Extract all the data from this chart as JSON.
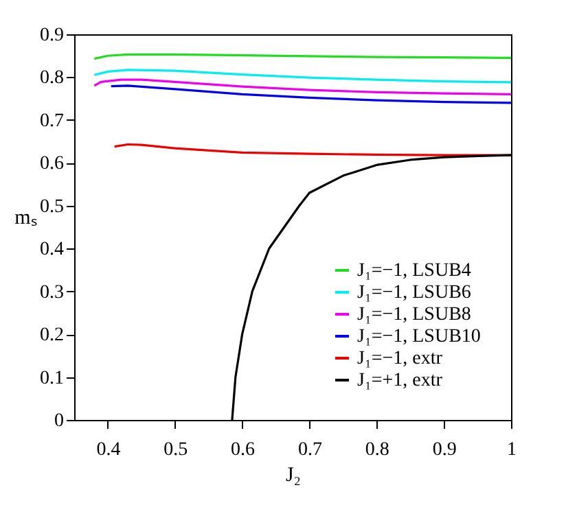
{
  "chart_data": {
    "type": "line",
    "xlabel": "J₂",
    "ylabel": "mₛ",
    "xlim": [
      0.35,
      1
    ],
    "xticks": [
      0.4,
      0.5,
      0.6,
      0.7,
      0.8,
      0.9,
      1
    ],
    "ylim": [
      0,
      0.9
    ],
    "yticks": [
      0,
      0.1,
      0.2,
      0.3,
      0.4,
      0.5,
      0.6,
      0.7,
      0.8,
      0.9
    ],
    "grid": false,
    "legend": "bottom right",
    "marker": "none",
    "line_style": "solid",
    "series": [
      {
        "name": "J₁=−1, LSUB4",
        "color": "#22dd22",
        "x": [
          0.38,
          0.4,
          0.43,
          0.5,
          0.6,
          0.7,
          0.8,
          0.9,
          1.0
        ],
        "values": [
          0.843,
          0.85,
          0.853,
          0.853,
          0.851,
          0.849,
          0.847,
          0.846,
          0.845
        ]
      },
      {
        "name": "J₁=−1, LSUB6",
        "color": "#00eeee",
        "x": [
          0.38,
          0.4,
          0.43,
          0.5,
          0.6,
          0.7,
          0.8,
          0.9,
          1.0
        ],
        "values": [
          0.805,
          0.813,
          0.817,
          0.815,
          0.806,
          0.799,
          0.794,
          0.79,
          0.788
        ]
      },
      {
        "name": "J₁=−1, LSUB8",
        "color": "#ee00ee",
        "x": [
          0.38,
          0.39,
          0.42,
          0.45,
          0.5,
          0.6,
          0.7,
          0.8,
          0.9,
          1.0
        ],
        "values": [
          0.78,
          0.789,
          0.794,
          0.794,
          0.789,
          0.778,
          0.77,
          0.765,
          0.762,
          0.76
        ]
      },
      {
        "name": "J₁=−1, LSUB10",
        "color": "#0000ee",
        "x": [
          0.405,
          0.43,
          0.5,
          0.6,
          0.7,
          0.8,
          0.9,
          1.0
        ],
        "values": [
          0.779,
          0.78,
          0.772,
          0.76,
          0.752,
          0.746,
          0.742,
          0.74
        ]
      },
      {
        "name": "J₁=−1, extr",
        "color": "#ee0000",
        "x": [
          0.41,
          0.43,
          0.45,
          0.5,
          0.6,
          0.7,
          0.8,
          0.9,
          1.0
        ],
        "values": [
          0.638,
          0.643,
          0.642,
          0.634,
          0.624,
          0.621,
          0.619,
          0.618,
          0.618
        ]
      },
      {
        "name": "J₁=+1, extr",
        "color": "#000000",
        "x": [
          0.585,
          0.59,
          0.6,
          0.615,
          0.64,
          0.685,
          0.7,
          0.75,
          0.8,
          0.85,
          0.9,
          0.95,
          1.0
        ],
        "values": [
          0,
          0.1,
          0.2,
          0.3,
          0.4,
          0.5,
          0.53,
          0.57,
          0.595,
          0.607,
          0.613,
          0.616,
          0.618
        ]
      }
    ]
  }
}
